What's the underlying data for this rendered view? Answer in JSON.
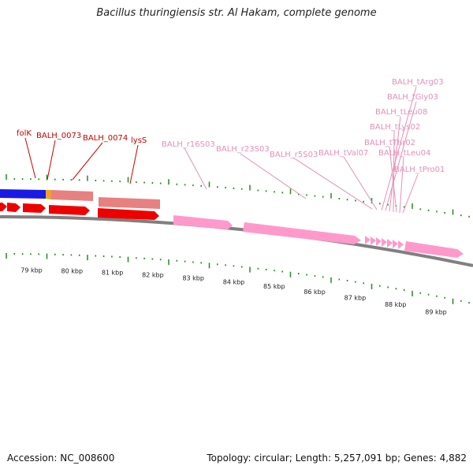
{
  "title": "Bacillus thuringiensis str. Al Hakam, complete genome",
  "footer": {
    "accession": "Accession: NC_008600",
    "summary": "Topology: circular; Length: 5,257,091 bp; Genes: 4,882"
  },
  "colors": {
    "protein_gene": "#ee0000",
    "rna_gene": "#ff99cc",
    "gene_label": "#cc0000",
    "rna_label": "#e68fb8",
    "backbone": "#808080",
    "tick": "#228B22",
    "blue_bar": "#1a1ae6",
    "orange_bar": "#f0a030",
    "salmon_bar": "#e88080"
  },
  "ruler_labels": [
    "79 kbp",
    "80 kbp",
    "81 kbp",
    "82 kbp",
    "83 kbp",
    "84 kbp",
    "85 kbp",
    "86 kbp",
    "87 kbp",
    "88 kbp",
    "89 kbp"
  ],
  "gene_labels": [
    "folK",
    "BALH_0073",
    "BALH_0074",
    "lysS"
  ],
  "rna_labels": [
    "BALH_r16S03",
    "BALH_r23S03",
    "BALH_r5S03",
    "BALH_tVal07",
    "BALH_tArg03",
    "BALH_tGly03",
    "BALH_tLeu08",
    "BALH_tLys02",
    "BALH_tThr02",
    "BALH_tLeu04",
    "BALH_tPro01"
  ]
}
